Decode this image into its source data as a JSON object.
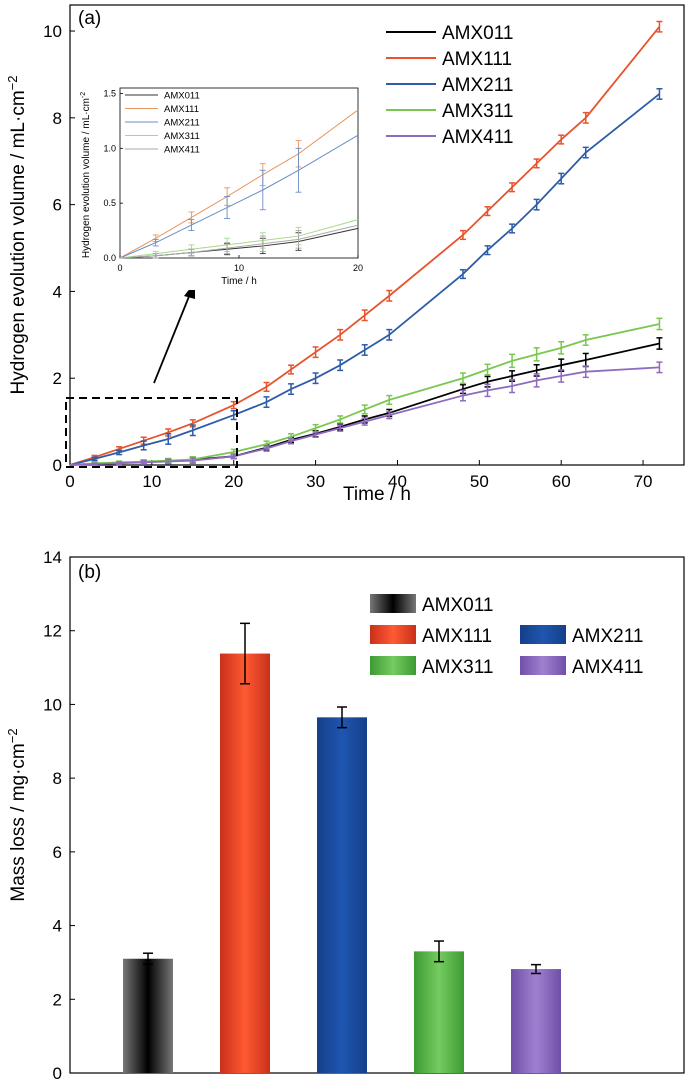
{
  "chart_data": [
    {
      "type": "line",
      "panel_label": "(a)",
      "xlabel": "Time / h",
      "ylabel": "Hydrogen evolution volume / mL·cm",
      "ylabel_exp": "−2",
      "xlim": [
        0,
        75
      ],
      "ylim": [
        0,
        10.6
      ],
      "xticks": [
        "0",
        "10",
        "20",
        "30",
        "40",
        "50",
        "60",
        "70"
      ],
      "yticks": [
        "0",
        "2",
        "4",
        "6",
        "8",
        "10"
      ],
      "x": [
        0,
        3,
        6,
        9,
        12,
        15,
        20,
        24,
        27,
        30,
        33,
        36,
        39,
        48,
        51,
        54,
        57,
        60,
        63,
        72
      ],
      "series": [
        {
          "name": "AMX011",
          "color": "#000000",
          "values": [
            0,
            0.03,
            0.05,
            0.07,
            0.09,
            0.12,
            0.2,
            0.4,
            0.58,
            0.72,
            0.88,
            1.05,
            1.2,
            1.75,
            1.92,
            2.05,
            2.18,
            2.3,
            2.42,
            2.8
          ],
          "errors": [
            0,
            0.02,
            0.03,
            0.04,
            0.05,
            0.06,
            0.05,
            0.06,
            0.06,
            0.07,
            0.07,
            0.08,
            0.08,
            0.1,
            0.12,
            0.12,
            0.13,
            0.14,
            0.15,
            0.13
          ]
        },
        {
          "name": "AMX111",
          "color": "#e8532c",
          "values": [
            0,
            0.18,
            0.37,
            0.56,
            0.75,
            0.96,
            1.38,
            1.8,
            2.2,
            2.6,
            3.0,
            3.45,
            3.9,
            5.3,
            5.85,
            6.4,
            6.95,
            7.5,
            8.0,
            10.1
          ],
          "errors": [
            0,
            0.04,
            0.05,
            0.08,
            0.08,
            0.08,
            0.08,
            0.1,
            0.1,
            0.12,
            0.12,
            0.12,
            0.12,
            0.1,
            0.1,
            0.1,
            0.1,
            0.1,
            0.12,
            0.12
          ]
        },
        {
          "name": "AMX211",
          "color": "#2e5ca8",
          "values": [
            0,
            0.14,
            0.29,
            0.45,
            0.6,
            0.8,
            1.15,
            1.45,
            1.75,
            2.0,
            2.3,
            2.65,
            3.0,
            4.4,
            4.95,
            5.45,
            6.0,
            6.6,
            7.2,
            8.55
          ],
          "errors": [
            0,
            0.04,
            0.05,
            0.1,
            0.12,
            0.12,
            0.1,
            0.12,
            0.12,
            0.12,
            0.12,
            0.12,
            0.12,
            0.1,
            0.1,
            0.1,
            0.12,
            0.12,
            0.12,
            0.12
          ]
        },
        {
          "name": "AMX311",
          "color": "#7ac74f",
          "values": [
            0,
            0.04,
            0.06,
            0.08,
            0.1,
            0.13,
            0.3,
            0.48,
            0.65,
            0.85,
            1.05,
            1.28,
            1.5,
            2.0,
            2.2,
            2.4,
            2.55,
            2.7,
            2.88,
            3.25
          ],
          "errors": [
            0,
            0.02,
            0.03,
            0.04,
            0.05,
            0.06,
            0.06,
            0.07,
            0.07,
            0.08,
            0.08,
            0.1,
            0.1,
            0.12,
            0.12,
            0.15,
            0.15,
            0.14,
            0.12,
            0.13
          ]
        },
        {
          "name": "AMX411",
          "color": "#8e6bbf",
          "values": [
            0,
            0.02,
            0.04,
            0.06,
            0.08,
            0.1,
            0.2,
            0.38,
            0.55,
            0.7,
            0.85,
            1.0,
            1.15,
            1.6,
            1.72,
            1.82,
            1.95,
            2.05,
            2.15,
            2.25
          ],
          "errors": [
            0,
            0.02,
            0.03,
            0.04,
            0.05,
            0.06,
            0.05,
            0.06,
            0.06,
            0.06,
            0.07,
            0.08,
            0.08,
            0.12,
            0.14,
            0.15,
            0.15,
            0.14,
            0.13,
            0.12
          ]
        }
      ],
      "legend_position": "top-right",
      "inset": {
        "xlabel": "Time / h",
        "ylabel": "Hydrogen evolution volume / mL·cm",
        "ylabel_exp": "-2",
        "xlim": [
          0,
          20
        ],
        "ylim": [
          0,
          1.55
        ],
        "xticks": [
          "0",
          "10",
          "20"
        ],
        "yticks": [
          "0.0",
          "0.5",
          "1.0",
          "1.5"
        ],
        "x": [
          0,
          3,
          6,
          9,
          12,
          15,
          20
        ],
        "series": [
          {
            "name": "AMX011",
            "color": "#333333",
            "values": [
              0,
              0.02,
              0.05,
              0.08,
              0.11,
              0.15,
              0.27
            ],
            "errors": [
              0,
              0.02,
              0.03,
              0.05,
              0.07,
              0.08,
              0
            ]
          },
          {
            "name": "AMX111",
            "color": "#e8955f",
            "values": [
              0,
              0.18,
              0.37,
              0.56,
              0.76,
              0.95,
              1.35
            ],
            "errors": [
              0,
              0.03,
              0.05,
              0.08,
              0.1,
              0.12,
              0
            ]
          },
          {
            "name": "AMX211",
            "color": "#6b8cc7",
            "values": [
              0,
              0.14,
              0.3,
              0.46,
              0.62,
              0.8,
              1.12
            ],
            "errors": [
              0,
              0.03,
              0.05,
              0.1,
              0.18,
              0.2,
              0
            ]
          },
          {
            "name": "AMX311",
            "color": "#a5d98a",
            "values": [
              0,
              0.04,
              0.08,
              0.12,
              0.16,
              0.2,
              0.35
            ],
            "errors": [
              0,
              0.02,
              0.04,
              0.06,
              0.07,
              0.08,
              0
            ]
          },
          {
            "name": "AMX411",
            "color": "#aaaaaa",
            "values": [
              0,
              0.02,
              0.05,
              0.09,
              0.13,
              0.17,
              0.3
            ],
            "errors": [
              0,
              0.02,
              0.03,
              0.05,
              0.07,
              0.08,
              0
            ]
          }
        ]
      }
    },
    {
      "type": "bar",
      "panel_label": "(b)",
      "xlabel": "",
      "ylabel": "Mass loss / mg·cm",
      "ylabel_exp": "−2",
      "ylim": [
        0,
        14
      ],
      "yticks": [
        "0",
        "2",
        "4",
        "6",
        "8",
        "10",
        "12",
        "14"
      ],
      "categories": [
        "AMX011",
        "AMX111",
        "AMX211",
        "AMX311",
        "AMX411"
      ],
      "values": [
        3.1,
        11.38,
        9.65,
        3.3,
        2.82
      ],
      "errors": [
        0.15,
        0.82,
        0.28,
        0.28,
        0.12
      ],
      "colors": [
        "#4a4a4a",
        "#e8452a",
        "#1a4da0",
        "#5cb548",
        "#8a66c0"
      ],
      "legend_position": "top-right"
    }
  ]
}
